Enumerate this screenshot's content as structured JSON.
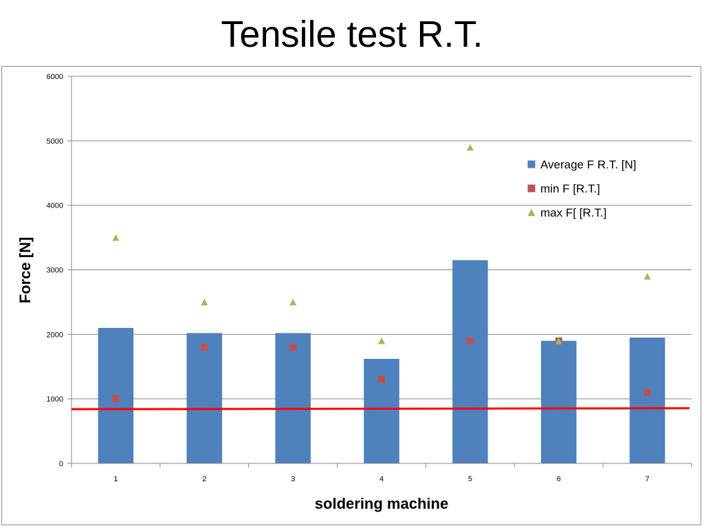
{
  "slide": {
    "title": "Tensile test R.T."
  },
  "chart_data": {
    "type": "bar",
    "xlabel": "soldering machine",
    "ylabel": "Force [N]",
    "ylim": [
      0,
      6000
    ],
    "yticks": [
      0,
      1000,
      2000,
      3000,
      4000,
      5000,
      6000
    ],
    "categories": [
      "1",
      "2",
      "3",
      "4",
      "5",
      "6",
      "7"
    ],
    "grid": true,
    "legend_position": "top-right",
    "series": [
      {
        "name": "Average F R.T.  [N]",
        "type": "bar",
        "color": "#4f81bd",
        "marker": "square",
        "values": [
          2100,
          2020,
          2020,
          1620,
          3150,
          1900,
          1950
        ]
      },
      {
        "name": "min F [R.T.]",
        "type": "scatter",
        "color": "#c0504d",
        "marker": "square",
        "values": [
          1000,
          1800,
          1800,
          1300,
          1900,
          1900,
          1100
        ]
      },
      {
        "name": "max F[ [R.T.]",
        "type": "scatter",
        "color": "#9bbb59",
        "marker": "triangle",
        "values": [
          3500,
          2500,
          2500,
          1900,
          4900,
          1900,
          2900
        ]
      }
    ],
    "reference_line": {
      "color": "#ff0000",
      "from_value": 840,
      "to_value": 855
    }
  }
}
